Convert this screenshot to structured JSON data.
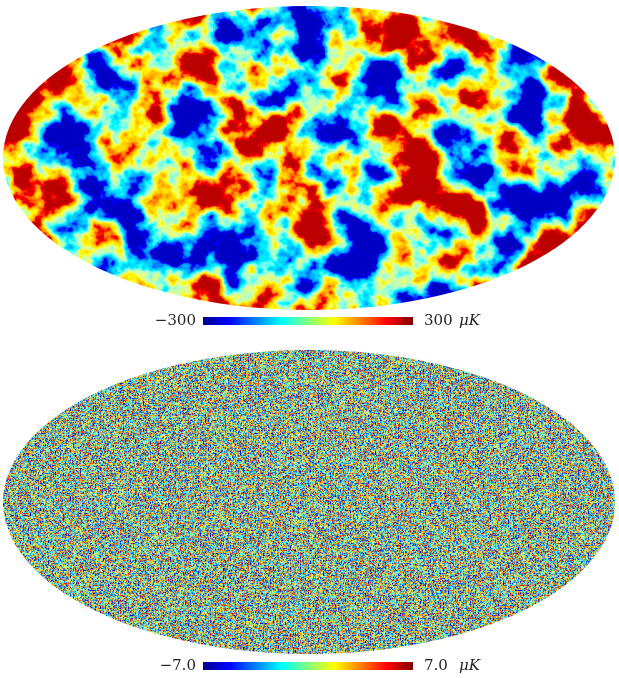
{
  "maps": [
    {
      "colorbar": {
        "min_label": "−300",
        "max_label": "300",
        "unit": "μK"
      }
    },
    {
      "colorbar": {
        "min_label": "−7.0",
        "max_label": "7.0",
        "unit": "μK"
      }
    }
  ]
}
